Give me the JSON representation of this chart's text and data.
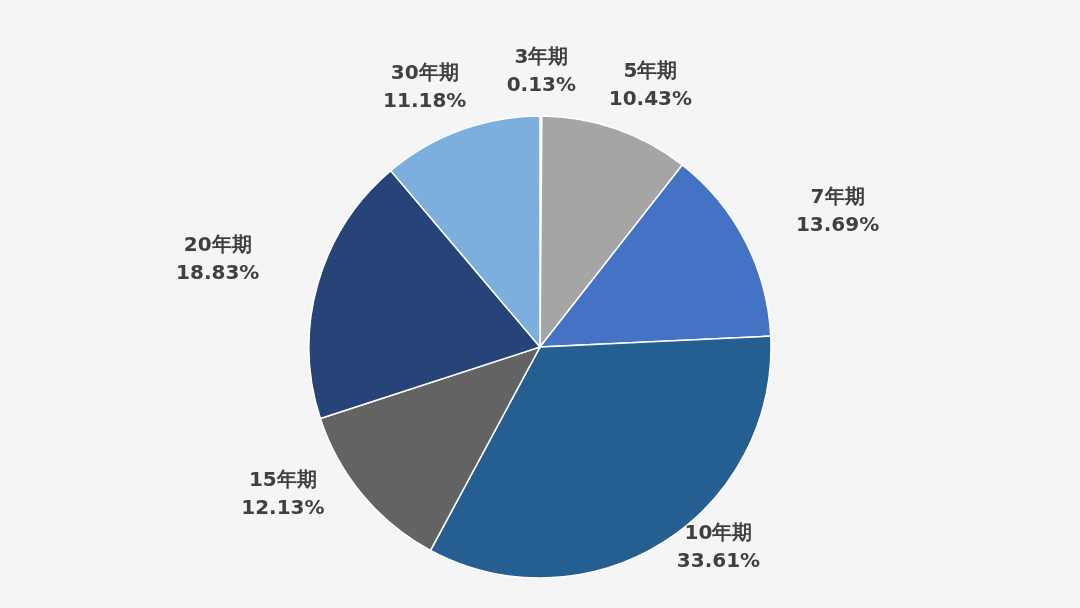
{
  "chart_data": {
    "type": "pie",
    "categories": [
      "3年期",
      "5年期",
      "7年期",
      "10年期",
      "15年期",
      "20年期",
      "30年期"
    ],
    "values": [
      0.13,
      10.43,
      13.69,
      33.61,
      12.13,
      18.83,
      11.18
    ],
    "value_labels": [
      "0.13%",
      "10.43%",
      "13.69%",
      "33.61%",
      "12.13%",
      "18.83%",
      "11.18%"
    ],
    "colors": [
      "#ed7d31",
      "#a5a5a5",
      "#4472c4",
      "#255e91",
      "#636363",
      "#264478",
      "#7cafdd"
    ]
  }
}
